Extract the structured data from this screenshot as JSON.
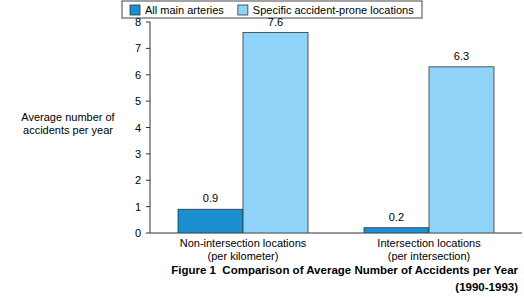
{
  "chart_data": {
    "type": "bar",
    "title": "Figure 1  Comparison of Average Number of Accidents per Year",
    "subtitle": "(1990-1993)",
    "y_label": "Average number of\naccidents per year",
    "categories": [
      "Non-intersection locations\n(per kilometer)",
      "Intersection locations\n(per intersection)"
    ],
    "series": [
      {
        "name": "All main arteries",
        "color": "#1a90d0",
        "values": [
          0.9,
          0.2
        ]
      },
      {
        "name": "Specific accident-prone locations",
        "color": "#8fd4f8",
        "values": [
          7.6,
          6.3
        ]
      }
    ],
    "ylim": [
      0,
      8
    ],
    "yticks": [
      0,
      1,
      2,
      3,
      4,
      5,
      6,
      7,
      8
    ],
    "grid": false,
    "legend": "top",
    "data_labels": true
  }
}
